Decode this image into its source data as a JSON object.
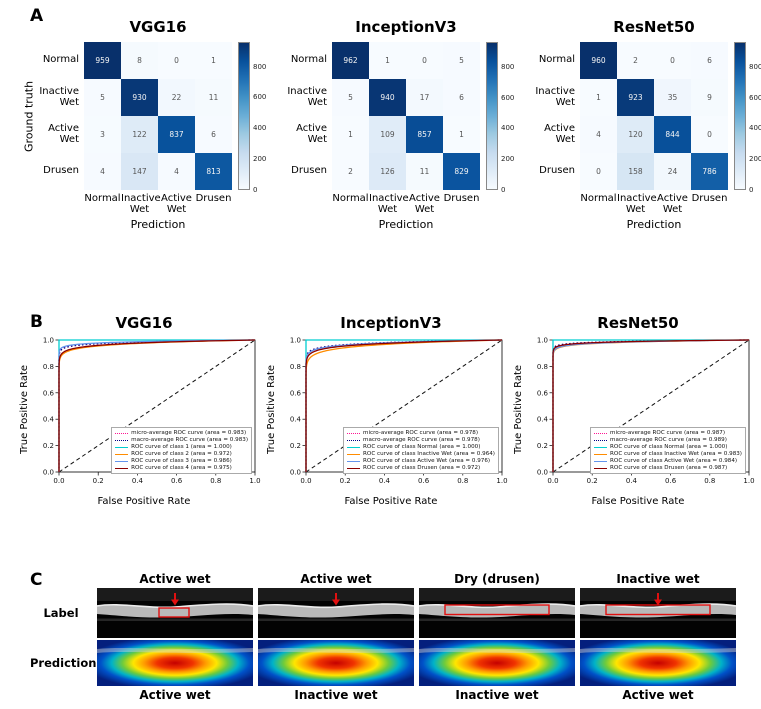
{
  "panel_labels": {
    "a": "A",
    "b": "B",
    "c": "C"
  },
  "chart_data": {
    "confusion_matrices": {
      "type": "heatmap",
      "colormap": "Blues",
      "xlabel": "Prediction",
      "ylabel": "Ground truth",
      "classes": [
        "Normal",
        "Inactive\nWet",
        "Active\nWet",
        "Drusen"
      ],
      "colorbar_ticks": [
        "0",
        "200",
        "400",
        "600",
        "800"
      ],
      "colorbar_tick_values": [
        0,
        200,
        400,
        600,
        800
      ],
      "matrices": [
        {
          "title": "VGG16",
          "values": [
            [
              959,
              8,
              0,
              1
            ],
            [
              5,
              930,
              22,
              11
            ],
            [
              3,
              122,
              837,
              6
            ],
            [
              4,
              147,
              4,
              813
            ]
          ]
        },
        {
          "title": "InceptionV3",
          "values": [
            [
              962,
              1,
              0,
              5
            ],
            [
              5,
              940,
              17,
              6
            ],
            [
              1,
              109,
              857,
              1
            ],
            [
              2,
              126,
              11,
              829
            ]
          ]
        },
        {
          "title": "ResNet50",
          "values": [
            [
              960,
              2,
              0,
              6
            ],
            [
              1,
              923,
              35,
              9
            ],
            [
              4,
              120,
              844,
              0
            ],
            [
              0,
              158,
              24,
              786
            ]
          ]
        }
      ]
    },
    "roc_curves": {
      "type": "line",
      "xlabel": "False Positive Rate",
      "ylabel": "True Positive Rate",
      "xlim": [
        0.0,
        1.0
      ],
      "ylim": [
        0.0,
        1.0
      ],
      "ticks": [
        "0.0",
        "0.2",
        "0.4",
        "0.6",
        "0.8",
        "1.0"
      ],
      "tick_values": [
        0,
        0.2,
        0.4,
        0.6,
        0.8,
        1.0
      ],
      "diagonal_reference_line": true,
      "charts": [
        {
          "title": "VGG16",
          "curves": [
            {
              "label": "micro-average ROC curve (area = 0.983)",
              "auc": 0.983,
              "color": "#ff1493",
              "dash": "dotted"
            },
            {
              "label": "macro-average ROC curve (area = 0.983)",
              "auc": 0.983,
              "color": "#000080",
              "dash": "dotted"
            },
            {
              "label": "ROC curve of class 1 (area = 1.000)",
              "auc": 1.0,
              "color": "#00ced1",
              "dash": "solid"
            },
            {
              "label": "ROC curve of class 2 (area = 0.972)",
              "auc": 0.972,
              "color": "#ff8c00",
              "dash": "solid"
            },
            {
              "label": "ROC curve of class 3 (area = 0.986)",
              "auc": 0.986,
              "color": "#6495ed",
              "dash": "solid"
            },
            {
              "label": "ROC curve of class 4 (area = 0.975)",
              "auc": 0.975,
              "color": "#8b0000",
              "dash": "solid"
            }
          ]
        },
        {
          "title": "InceptionV3",
          "curves": [
            {
              "label": "micro-average ROC curve (area = 0.978)",
              "auc": 0.978,
              "color": "#ff1493",
              "dash": "dotted"
            },
            {
              "label": "macro-average ROC curve (area = 0.978)",
              "auc": 0.978,
              "color": "#000080",
              "dash": "dotted"
            },
            {
              "label": "ROC curve of class Normal (area = 1.000)",
              "auc": 1.0,
              "color": "#00ced1",
              "dash": "solid"
            },
            {
              "label": "ROC curve of class Inactive Wet (area = 0.964)",
              "auc": 0.964,
              "color": "#ff8c00",
              "dash": "solid"
            },
            {
              "label": "ROC curve of class Active Wet (area = 0.976)",
              "auc": 0.976,
              "color": "#6495ed",
              "dash": "solid"
            },
            {
              "label": "ROC curve of class Drusen (area = 0.972)",
              "auc": 0.972,
              "color": "#8b0000",
              "dash": "solid"
            }
          ]
        },
        {
          "title": "ResNet50",
          "curves": [
            {
              "label": "micro-average ROC curve (area = 0.987)",
              "auc": 0.987,
              "color": "#ff1493",
              "dash": "dotted"
            },
            {
              "label": "macro-average ROC curve (area = 0.989)",
              "auc": 0.989,
              "color": "#000080",
              "dash": "dotted"
            },
            {
              "label": "ROC curve of class Normal (area = 1.000)",
              "auc": 1.0,
              "color": "#00ced1",
              "dash": "solid"
            },
            {
              "label": "ROC curve of class Inactive Wet (area = 0.983)",
              "auc": 0.983,
              "color": "#ff8c00",
              "dash": "solid"
            },
            {
              "label": "ROC curve of class Active Wet (area = 0.984)",
              "auc": 0.984,
              "color": "#6495ed",
              "dash": "solid"
            },
            {
              "label": "ROC curve of class Drusen (area = 0.987)",
              "auc": 0.987,
              "color": "#8b0000",
              "dash": "solid"
            }
          ]
        }
      ]
    }
  },
  "gradcam": {
    "row_labels": [
      "Label",
      "Prediction"
    ],
    "annotation_color": "#e01010",
    "columns": [
      {
        "top_label": "Active wet",
        "bottom_label": "Active wet",
        "arrow": true,
        "box": "small"
      },
      {
        "top_label": "Active wet",
        "bottom_label": "Inactive wet",
        "arrow": true,
        "box": "none"
      },
      {
        "top_label": "Dry (drusen)",
        "bottom_label": "Inactive wet",
        "arrow": false,
        "box": "wide"
      },
      {
        "top_label": "Inactive wet",
        "bottom_label": "Active wet",
        "arrow": true,
        "box": "wide"
      }
    ]
  }
}
